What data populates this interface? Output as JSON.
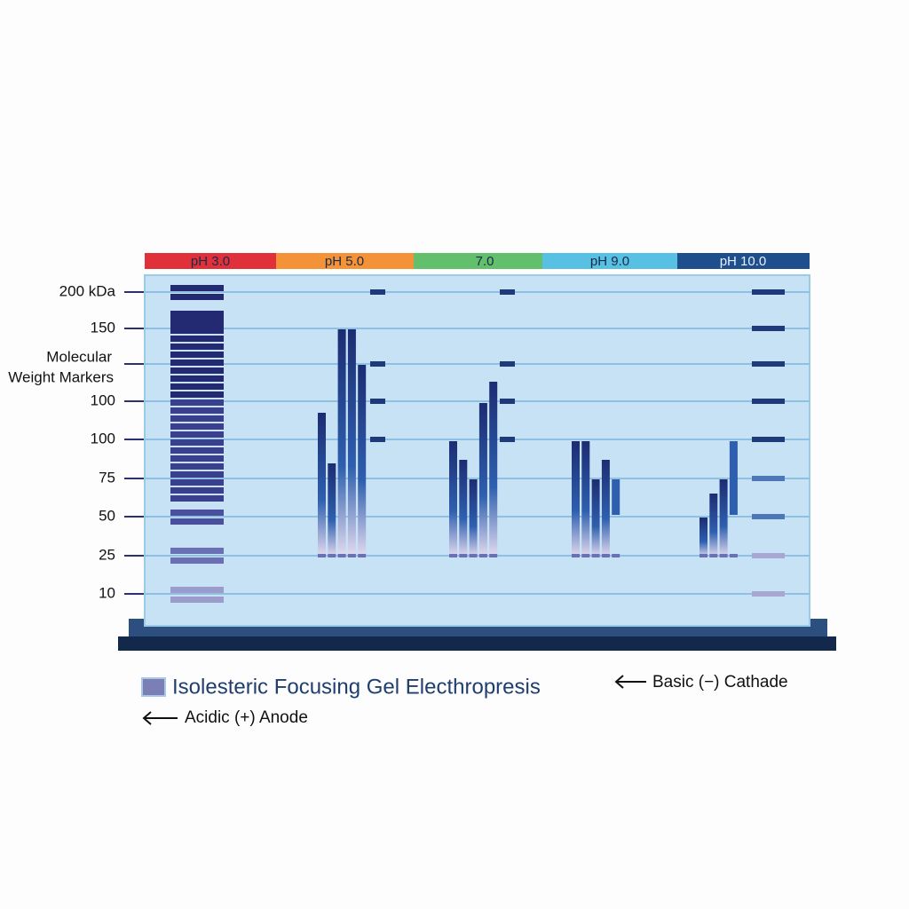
{
  "ph_scale": [
    "pH 3.0",
    "pH 5.0",
    "7.0",
    "pH 9.0",
    "pH 10.0"
  ],
  "mw_labels": [
    "200 kDa",
    "150",
    "100",
    "100",
    "75",
    "50",
    "25",
    "10"
  ],
  "mw_title": [
    "Molecular",
    "Weight Markers"
  ],
  "legend": {
    "title": "Isolesteric Focusing Gel Electhropresis",
    "cathode": "Basic (−) Cathade",
    "anode": "Acidic (+) Anode"
  }
}
